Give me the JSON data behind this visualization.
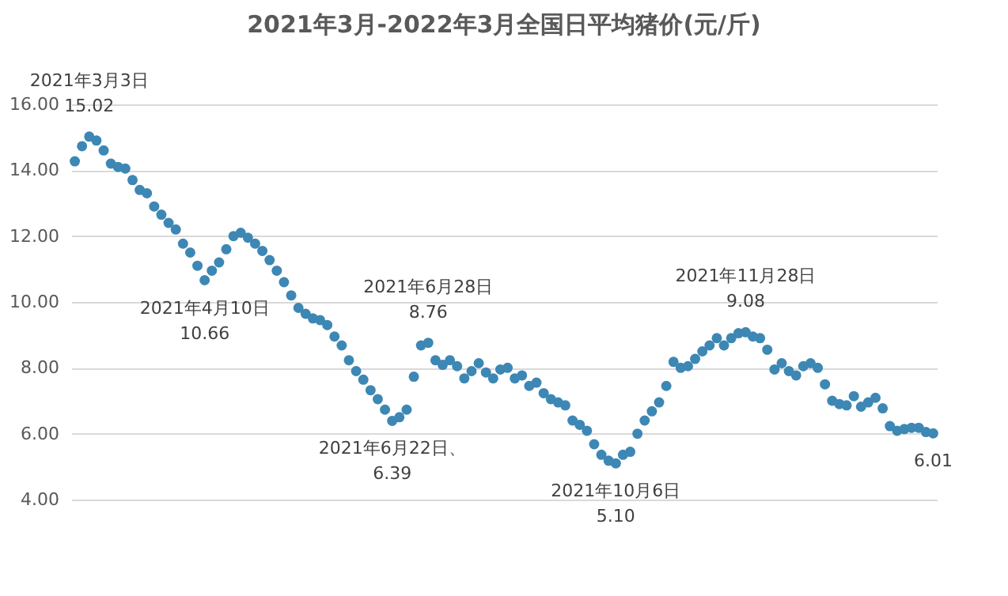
{
  "chart_data": {
    "type": "scatter",
    "title": "2021年3月-2022年3月全国日平均猪价(元/斤)",
    "categories": [
      null,
      null,
      null,
      null,
      null,
      null,
      null,
      null,
      null,
      null,
      null,
      null,
      null,
      null,
      null,
      null,
      null,
      null,
      null,
      null,
      null,
      null,
      null,
      null,
      null,
      null,
      null,
      null,
      null,
      null,
      null,
      null,
      null,
      null,
      null,
      null,
      null,
      null,
      null,
      null,
      null,
      null,
      null,
      null,
      null,
      null,
      null,
      null,
      null,
      null,
      null,
      null,
      null,
      null,
      null,
      null,
      null,
      null,
      null,
      null,
      null,
      null,
      null,
      null,
      null,
      null,
      null,
      null,
      null,
      null,
      null,
      null,
      null,
      null,
      null,
      null,
      null,
      null,
      null,
      null,
      null,
      null,
      null,
      null,
      null,
      null,
      null,
      null,
      null,
      null,
      null,
      null,
      null,
      null,
      null,
      null,
      null,
      null,
      null,
      null,
      null,
      null,
      null,
      null,
      null,
      null,
      null,
      null,
      null,
      null,
      null,
      null,
      null,
      null,
      null,
      null,
      null,
      null,
      null,
      null
    ],
    "series": [
      {
        "color": "#3d87b4",
        "values": [
          14.27,
          14.73,
          15.02,
          14.9,
          14.6,
          14.2,
          14.1,
          14.05,
          13.7,
          13.4,
          13.3,
          12.9,
          12.65,
          12.4,
          12.2,
          11.77,
          11.5,
          11.1,
          10.66,
          10.95,
          11.2,
          11.6,
          12.0,
          12.1,
          11.95,
          11.77,
          11.55,
          11.27,
          10.95,
          10.6,
          10.2,
          9.82,
          9.64,
          9.5,
          9.45,
          9.3,
          8.95,
          8.68,
          8.23,
          7.9,
          7.64,
          7.32,
          7.05,
          6.73,
          6.39,
          6.5,
          6.73,
          7.73,
          8.68,
          8.76,
          8.23,
          8.09,
          8.23,
          8.05,
          7.68,
          7.9,
          8.14,
          7.86,
          7.68,
          7.95,
          8.0,
          7.68,
          7.77,
          7.45,
          7.55,
          7.23,
          7.05,
          6.95,
          6.86,
          6.4,
          6.27,
          6.09,
          5.68,
          5.36,
          5.18,
          5.1,
          5.36,
          5.45,
          6.0,
          6.4,
          6.68,
          6.95,
          7.45,
          8.18,
          8.0,
          8.05,
          8.27,
          8.5,
          8.68,
          8.9,
          8.68,
          8.9,
          9.05,
          9.08,
          8.95,
          8.9,
          8.55,
          7.95,
          8.14,
          7.9,
          7.77,
          8.05,
          8.14,
          8.0,
          7.5,
          7.0,
          6.9,
          6.86,
          7.14,
          6.82,
          6.95,
          7.09,
          6.77,
          6.23,
          6.09,
          6.14,
          6.18,
          6.18,
          6.05,
          6.01
        ]
      }
    ],
    "ylim": [
      4,
      16
    ],
    "yticks": [
      {
        "value": 4,
        "label": "4.00"
      },
      {
        "value": 6,
        "label": "6.00"
      },
      {
        "value": 8,
        "label": "8.00"
      },
      {
        "value": 10,
        "label": "10.00"
      },
      {
        "value": 12,
        "label": "12.00"
      },
      {
        "value": 14,
        "label": "14.00"
      },
      {
        "value": 16,
        "label": "16.00"
      }
    ],
    "grid": "y",
    "marker": "circle",
    "tick_labels": "y",
    "annotations": [
      {
        "text": "2021年3月3日\n15.02",
        "y": 15.02
      },
      {
        "text": "2021年4月10日\n10.66",
        "y": 10.66
      },
      {
        "text": "2021年6月22日、\n6.39",
        "y": 6.39
      },
      {
        "text": "2021年6月28日\n8.76",
        "y": 8.76
      },
      {
        "text": "2021年10月6日\n5.10",
        "y": 5.1
      },
      {
        "text": "2021年11月28日\n9.08",
        "y": 9.08
      },
      {
        "text": "6.01",
        "y": 6.01
      }
    ]
  }
}
